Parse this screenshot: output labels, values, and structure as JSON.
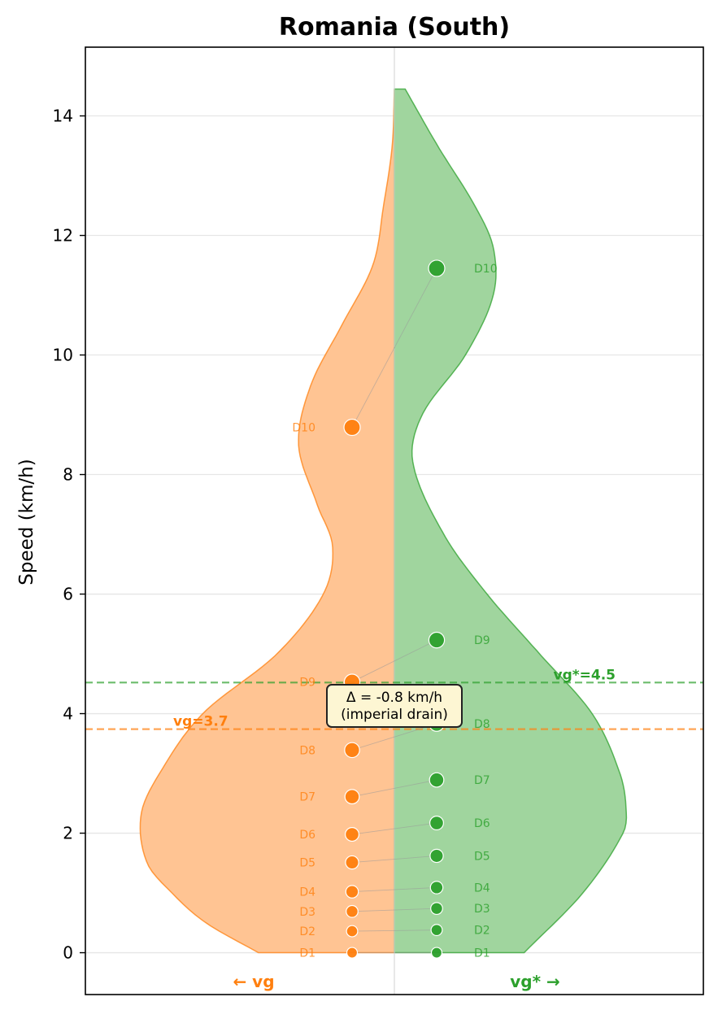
{
  "chart_data": {
    "type": "violin",
    "title": "Romania (South)",
    "ylabel": "Speed (km/h)",
    "xlabel": "",
    "ylim": [
      -0.7,
      15.15
    ],
    "yticks": [
      0,
      2,
      4,
      6,
      8,
      10,
      12,
      14
    ],
    "ytick_labels": [
      "0",
      "2",
      "4",
      "6",
      "8",
      "10",
      "12",
      "14"
    ],
    "grid": true,
    "series": [
      {
        "name": "vg",
        "side_label": "← vg",
        "color": "#ff7f0e",
        "fill": "#ffc493",
        "mean": 3.74,
        "mean_label": "vg=3.7",
        "deciles": [
          "D1",
          "D2",
          "D3",
          "D4",
          "D5",
          "D6",
          "D7",
          "D8",
          "D9",
          "D10"
        ],
        "values": [
          0.0,
          0.36,
          0.69,
          1.02,
          1.51,
          1.98,
          2.61,
          3.39,
          4.53,
          8.79
        ],
        "density_profile": [
          [
            0,
            0.44
          ],
          [
            0.5,
            0.61
          ],
          [
            1,
            0.72
          ],
          [
            1.5,
            0.8
          ],
          [
            2.3,
            0.82
          ],
          [
            3,
            0.76
          ],
          [
            4,
            0.62
          ],
          [
            5,
            0.38
          ],
          [
            6,
            0.23
          ],
          [
            6.8,
            0.2
          ],
          [
            7.5,
            0.25
          ],
          [
            8.5,
            0.31
          ],
          [
            9.5,
            0.27
          ],
          [
            10.5,
            0.17
          ],
          [
            11.5,
            0.07
          ],
          [
            12.5,
            0.035
          ],
          [
            13.5,
            0.007
          ],
          [
            14.45,
            0
          ]
        ]
      },
      {
        "name": "vg*",
        "side_label": "vg* →",
        "color": "#2ca02c",
        "fill": "#a0d59e",
        "mean": 4.52,
        "mean_label": "vg*=4.5",
        "deciles": [
          "D1",
          "D2",
          "D3",
          "D4",
          "D5",
          "D6",
          "D7",
          "D8",
          "D9",
          "D10"
        ],
        "values": [
          0.0,
          0.38,
          0.74,
          1.09,
          1.62,
          2.17,
          2.89,
          3.83,
          5.23,
          11.45
        ],
        "density_profile": [
          [
            0,
            0.42
          ],
          [
            1,
            0.61
          ],
          [
            2,
            0.74
          ],
          [
            2.4,
            0.75
          ],
          [
            3,
            0.73
          ],
          [
            4,
            0.64
          ],
          [
            5,
            0.47
          ],
          [
            6,
            0.3
          ],
          [
            7,
            0.16
          ],
          [
            8.2,
            0.06
          ],
          [
            9,
            0.09
          ],
          [
            10,
            0.23
          ],
          [
            11,
            0.32
          ],
          [
            11.8,
            0.32
          ],
          [
            12.5,
            0.26
          ],
          [
            13.5,
            0.14
          ],
          [
            14.45,
            0.035
          ]
        ]
      }
    ],
    "annotation": {
      "lines": [
        "Δ = -0.8 km/h",
        "(imperial drain)"
      ]
    }
  }
}
